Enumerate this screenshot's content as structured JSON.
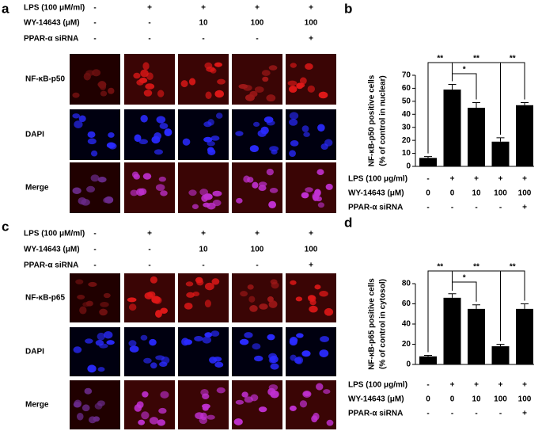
{
  "panels": [
    {
      "letter": "a",
      "treatments": [
        {
          "label": "LPS (100 μM/ml)",
          "values": [
            "-",
            "+",
            "+",
            "+",
            "+"
          ]
        },
        {
          "label": "WY-14643 (μM)",
          "values": [
            "-",
            "-",
            "10",
            "100",
            "100"
          ]
        },
        {
          "label": "PPAR-α siRNA",
          "values": [
            "-",
            "-",
            "-",
            "-",
            "+"
          ]
        }
      ],
      "rows": [
        "NF-κB-p50",
        "DAPI",
        "Merge"
      ]
    },
    {
      "letter": "c",
      "treatments": [
        {
          "label": "LPS (100 μM/ml)",
          "values": [
            "-",
            "+",
            "+",
            "+",
            "+"
          ]
        },
        {
          "label": "WY-14643 (μM)",
          "values": [
            "-",
            "-",
            "10",
            "100",
            "100"
          ]
        },
        {
          "label": "PPAR-α siRNA",
          "values": [
            "-",
            "-",
            "-",
            "-",
            "+"
          ]
        }
      ],
      "rows": [
        "NF-κB-p65",
        "DAPI",
        "Merge"
      ]
    }
  ],
  "chart_data": [
    {
      "type": "bar",
      "letter": "b",
      "ylabel": [
        "NF-κB-p50 positive cells",
        "(% of control in nuclear)"
      ],
      "values": [
        6.5,
        59,
        45,
        19,
        47
      ],
      "errors": [
        1,
        4,
        4,
        3,
        2
      ],
      "color": "#000000",
      "ylim": [
        0,
        70
      ],
      "yticks": [
        0,
        10,
        20,
        30,
        40,
        50,
        60,
        70
      ],
      "annotations": [
        "**",
        "*",
        "**",
        "**"
      ],
      "treatments": [
        {
          "label": "LPS (100 μg/ml)",
          "values": [
            "-",
            "+",
            "+",
            "+",
            "+"
          ]
        },
        {
          "label": "WY-14643 (μM)",
          "values": [
            "0",
            "0",
            "10",
            "100",
            "100"
          ]
        },
        {
          "label": "PPAR-α siRNA",
          "values": [
            "-",
            "-",
            "-",
            "-",
            "+"
          ]
        }
      ]
    },
    {
      "type": "bar",
      "letter": "d",
      "ylabel": [
        "NF-κB-p65 positive cells",
        "(% of control in cytosol)"
      ],
      "values": [
        8,
        66,
        55,
        18,
        55
      ],
      "errors": [
        1,
        4,
        4,
        2,
        5
      ],
      "color": "#000000",
      "ylim": [
        0,
        80
      ],
      "yticks": [
        0,
        20,
        40,
        60,
        80
      ],
      "annotations": [
        "**",
        "*",
        "**",
        "**"
      ],
      "treatments": [
        {
          "label": "LPS (100 μg/ml)",
          "values": [
            "-",
            "+",
            "+",
            "+",
            "+"
          ]
        },
        {
          "label": "WY-14643 (μM)",
          "values": [
            "0",
            "0",
            "10",
            "100",
            "100"
          ]
        },
        {
          "label": "PPAR-α siRNA",
          "values": [
            "-",
            "-",
            "-",
            "-",
            "+"
          ]
        }
      ]
    }
  ]
}
